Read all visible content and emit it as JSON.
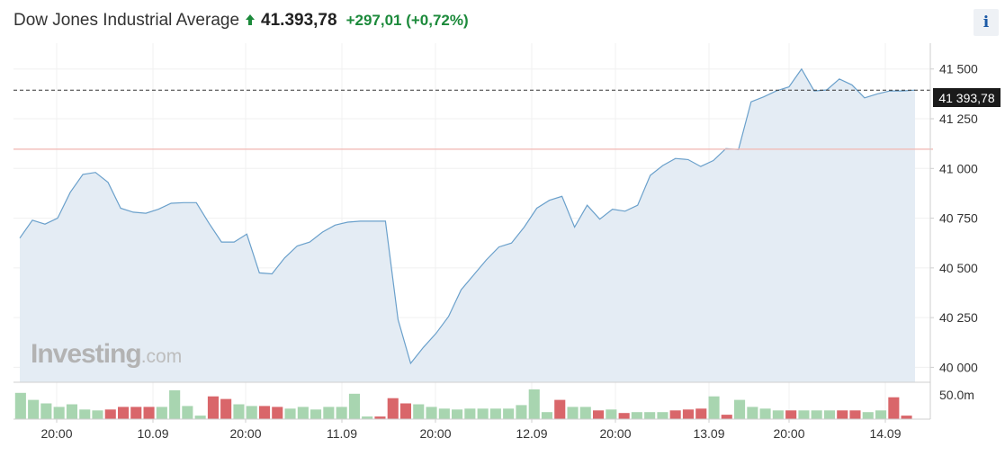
{
  "header": {
    "title": "Dow Jones Industrial Average",
    "direction_icon": "arrow-up-icon",
    "price": "41.393,78",
    "change": "+297,01 (+0,72%)",
    "info_label": "i"
  },
  "watermark": {
    "brand": "Investing",
    "suffix": ".com"
  },
  "colors": {
    "line": "#6aa0cb",
    "area": "#e4ecf4",
    "up_volume": "#a8d5b0",
    "down_volume": "#d9666a",
    "positive": "#1c8a3b",
    "reference_line": "#f2b6b0"
  },
  "chart_data": {
    "type": "area",
    "y_ticks": [
      "41 500",
      "41 250",
      "41 000",
      "40 750",
      "40 500",
      "40 250",
      "40 000"
    ],
    "y_tick_values": [
      41500,
      41250,
      41000,
      40750,
      40500,
      40250,
      40000
    ],
    "ylim": [
      39925,
      41630
    ],
    "x_labels": [
      "20:00",
      "10.09",
      "20:00",
      "11.09",
      "20:00",
      "12.09",
      "20:00",
      "13.09",
      "20:00",
      "14.09"
    ],
    "last_value": 41393.78,
    "last_value_label": "41 393,78",
    "previous_close": 41097,
    "volume_axis_label": "50.0m",
    "series": [
      {
        "values": [
          40650,
          40740,
          40720,
          40750,
          40880,
          40970,
          40980,
          40930,
          40800,
          40780,
          40775,
          40795,
          40825,
          40828,
          40828,
          40725,
          40630,
          40630,
          40670,
          40475,
          40470,
          40550,
          40610,
          40630,
          40680,
          40715,
          40730,
          40735,
          40735,
          40735,
          40240,
          40020,
          40100,
          40170,
          40255,
          40390,
          40465,
          40540,
          40605,
          40625,
          40705,
          40800,
          40840,
          40860,
          40705,
          40815,
          40745,
          40795,
          40785,
          40815,
          40965,
          41015,
          41050,
          41045,
          41010,
          41040,
          41100,
          41095,
          41335,
          41360,
          41390,
          41410,
          41500,
          41390,
          41395,
          41450,
          41420,
          41355,
          41375,
          41390,
          41390,
          41393.78
        ]
      }
    ],
    "volume": [
      {
        "v": 30,
        "d": "up"
      },
      {
        "v": 22,
        "d": "up"
      },
      {
        "v": 18,
        "d": "up"
      },
      {
        "v": 14,
        "d": "up"
      },
      {
        "v": 17,
        "d": "up"
      },
      {
        "v": 11,
        "d": "up"
      },
      {
        "v": 10,
        "d": "up"
      },
      {
        "v": 11,
        "d": "down"
      },
      {
        "v": 14,
        "d": "down"
      },
      {
        "v": 14,
        "d": "down"
      },
      {
        "v": 14,
        "d": "down"
      },
      {
        "v": 14,
        "d": "up"
      },
      {
        "v": 33,
        "d": "up"
      },
      {
        "v": 15,
        "d": "up"
      },
      {
        "v": 4,
        "d": "up"
      },
      {
        "v": 26,
        "d": "down"
      },
      {
        "v": 23,
        "d": "down"
      },
      {
        "v": 17,
        "d": "up"
      },
      {
        "v": 15,
        "d": "up"
      },
      {
        "v": 15,
        "d": "down"
      },
      {
        "v": 14,
        "d": "down"
      },
      {
        "v": 12,
        "d": "up"
      },
      {
        "v": 14,
        "d": "up"
      },
      {
        "v": 11,
        "d": "up"
      },
      {
        "v": 14,
        "d": "up"
      },
      {
        "v": 14,
        "d": "up"
      },
      {
        "v": 29,
        "d": "up"
      },
      {
        "v": 3,
        "d": "up"
      },
      {
        "v": 3,
        "d": "down"
      },
      {
        "v": 24,
        "d": "down"
      },
      {
        "v": 18,
        "d": "down"
      },
      {
        "v": 17,
        "d": "up"
      },
      {
        "v": 14,
        "d": "up"
      },
      {
        "v": 12,
        "d": "up"
      },
      {
        "v": 11,
        "d": "up"
      },
      {
        "v": 12,
        "d": "up"
      },
      {
        "v": 12,
        "d": "up"
      },
      {
        "v": 12,
        "d": "up"
      },
      {
        "v": 12,
        "d": "up"
      },
      {
        "v": 16,
        "d": "up"
      },
      {
        "v": 34,
        "d": "up"
      },
      {
        "v": 8,
        "d": "up"
      },
      {
        "v": 22,
        "d": "down"
      },
      {
        "v": 14,
        "d": "up"
      },
      {
        "v": 14,
        "d": "up"
      },
      {
        "v": 10,
        "d": "down"
      },
      {
        "v": 11,
        "d": "up"
      },
      {
        "v": 7,
        "d": "down"
      },
      {
        "v": 8,
        "d": "up"
      },
      {
        "v": 8,
        "d": "up"
      },
      {
        "v": 8,
        "d": "up"
      },
      {
        "v": 10,
        "d": "down"
      },
      {
        "v": 11,
        "d": "down"
      },
      {
        "v": 12,
        "d": "down"
      },
      {
        "v": 26,
        "d": "up"
      },
      {
        "v": 5,
        "d": "down"
      },
      {
        "v": 22,
        "d": "up"
      },
      {
        "v": 14,
        "d": "up"
      },
      {
        "v": 12,
        "d": "up"
      },
      {
        "v": 10,
        "d": "up"
      },
      {
        "v": 10,
        "d": "down"
      },
      {
        "v": 10,
        "d": "up"
      },
      {
        "v": 10,
        "d": "up"
      },
      {
        "v": 10,
        "d": "up"
      },
      {
        "v": 10,
        "d": "down"
      },
      {
        "v": 10,
        "d": "down"
      },
      {
        "v": 8,
        "d": "up"
      },
      {
        "v": 10,
        "d": "up"
      },
      {
        "v": 25,
        "d": "down"
      },
      {
        "v": 4,
        "d": "down"
      }
    ]
  }
}
